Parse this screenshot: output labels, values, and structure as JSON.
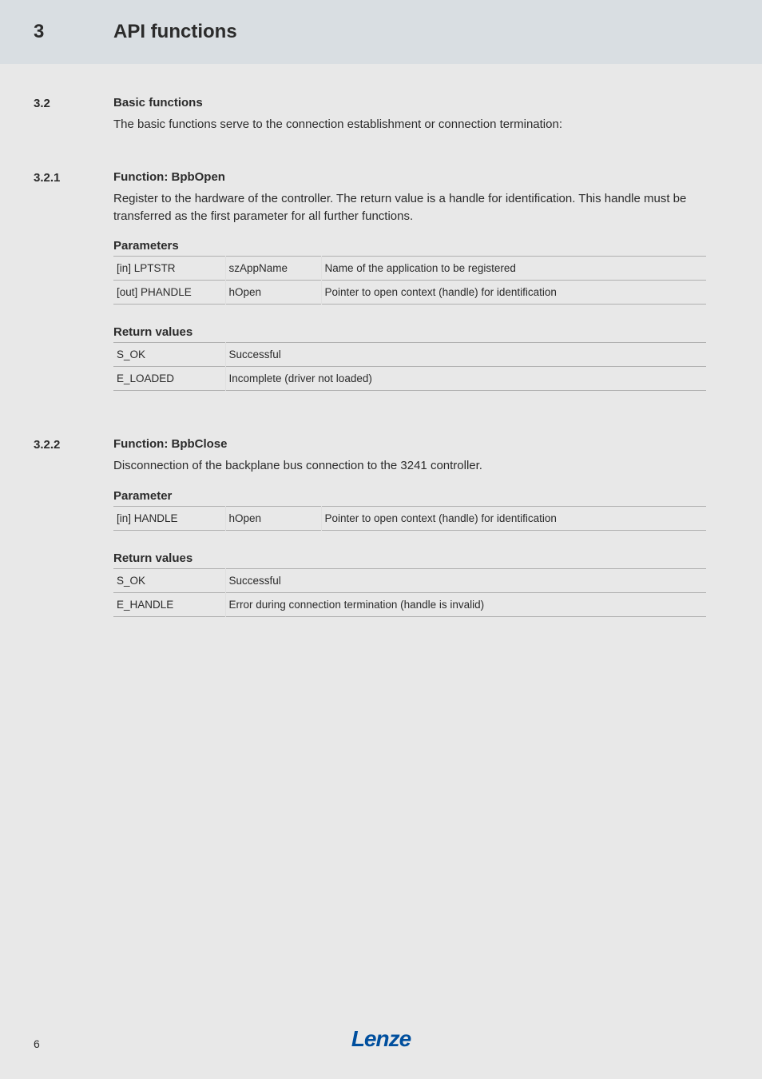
{
  "chapter": {
    "num": "3",
    "title": "API functions"
  },
  "s32": {
    "num": "3.2",
    "title": "Basic functions",
    "intro": "The basic functions serve to the connection establishment or connection termination:"
  },
  "s321": {
    "num": "3.2.1",
    "title": "Function: BpbOpen",
    "intro": "Register to the hardware of the controller. The return value is a handle for identification. This handle must be transferred as the first parameter for all further functions.",
    "params_label": "Parameters",
    "params": [
      {
        "a": "[in] LPTSTR",
        "b": "szAppName",
        "c": "Name of the application to be registered"
      },
      {
        "a": "[out] PHANDLE",
        "b": "hOpen",
        "c": "Pointer to open context (handle) for identification"
      }
    ],
    "ret_label": "Return values",
    "rets": [
      {
        "a": "S_OK",
        "b": "Successful"
      },
      {
        "a": "E_LOADED",
        "b": "Incomplete (driver not loaded)"
      }
    ]
  },
  "s322": {
    "num": "3.2.2",
    "title": "Function: BpbClose",
    "intro": "Disconnection of the backplane bus connection to the 3241 controller.",
    "params_label": "Parameter",
    "params": [
      {
        "a": "[in] HANDLE",
        "b": "hOpen",
        "c": "Pointer to open context (handle) for identification"
      }
    ],
    "ret_label": "Return values",
    "rets": [
      {
        "a": "S_OK",
        "b": "Successful"
      },
      {
        "a": "E_HANDLE",
        "b": "Error during connection termination (handle is invalid)"
      }
    ]
  },
  "footer": {
    "logo": "Lenze",
    "page": "6"
  }
}
